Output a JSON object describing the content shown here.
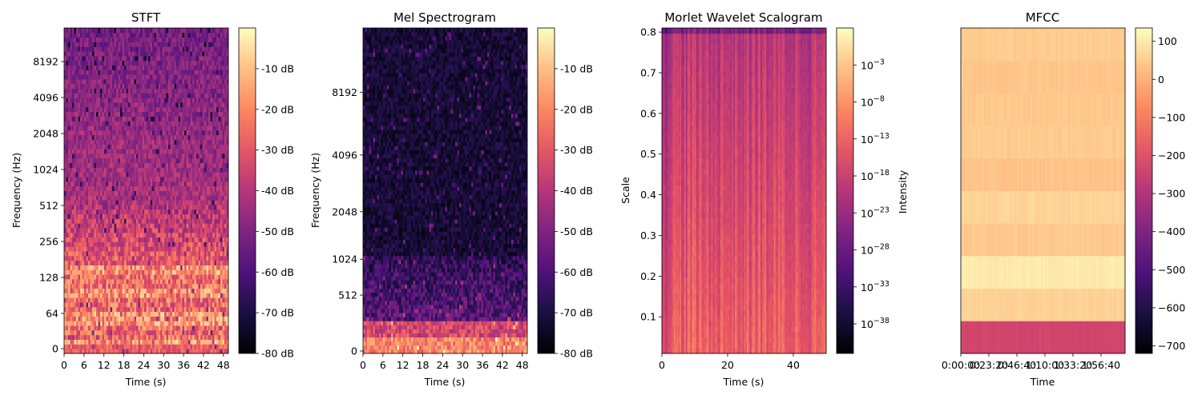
{
  "chart_data": [
    {
      "type": "heatmap",
      "title": "STFT",
      "xlabel": "Time (s)",
      "ylabel": "Frequency (Hz)",
      "x_ticks": [
        "0",
        "6",
        "12",
        "18",
        "24",
        "30",
        "36",
        "42",
        "48"
      ],
      "x_range": [
        0,
        49.5
      ],
      "y_ticks": [
        "0",
        "64",
        "128",
        "256",
        "512",
        "1024",
        "2048",
        "4096",
        "8192"
      ],
      "y_scale": "log-frequency",
      "colormap": "magma",
      "colorbar": {
        "ticks": [
          "-10 dB",
          "-20 dB",
          "-30 dB",
          "-40 dB",
          "-50 dB",
          "-60 dB",
          "-70 dB",
          "-80 dB"
        ],
        "range": [
          -80,
          0
        ],
        "label": ""
      },
      "energy_profile": "bright below ~200 Hz, fading to dark above 1 kHz"
    },
    {
      "type": "heatmap",
      "title": "Mel Spectrogram",
      "xlabel": "Time (s)",
      "ylabel": "Frequency (Hz)",
      "x_ticks": [
        "0",
        "6",
        "12",
        "18",
        "24",
        "30",
        "36",
        "42",
        "48"
      ],
      "x_range": [
        0,
        49.5
      ],
      "y_ticks": [
        "0",
        "512",
        "1024",
        "2048",
        "4096",
        "8192"
      ],
      "y_scale": "mel",
      "colormap": "magma",
      "colorbar": {
        "ticks": [
          "-10 dB",
          "-20 dB",
          "-30 dB",
          "-40 dB",
          "-50 dB",
          "-60 dB",
          "-70 dB",
          "-80 dB"
        ],
        "range": [
          -80,
          0
        ],
        "label": ""
      },
      "energy_profile": "bright only in lowest mel bands, mostly black above"
    },
    {
      "type": "heatmap",
      "title": "Morlet Wavelet Scalogram",
      "xlabel": "Time (s)",
      "ylabel": "Scale",
      "x_ticks": [
        "0",
        "20",
        "40"
      ],
      "x_range": [
        0,
        50
      ],
      "y_ticks": [
        "0.1",
        "0.2",
        "0.3",
        "0.4",
        "0.5",
        "0.6",
        "0.7",
        "0.8"
      ],
      "y_range": [
        0.01,
        0.81
      ],
      "colormap": "magma",
      "colorbar": {
        "label": "Intensity",
        "log_scale": true,
        "range_exponent": [
          -42,
          2
        ],
        "ticks": [
          {
            "base": "10",
            "exp": "−3"
          },
          {
            "base": "10",
            "exp": "−8"
          },
          {
            "base": "10",
            "exp": "−13"
          },
          {
            "base": "10",
            "exp": "−18"
          },
          {
            "base": "10",
            "exp": "−23"
          },
          {
            "base": "10",
            "exp": "−28"
          },
          {
            "base": "10",
            "exp": "−33"
          },
          {
            "base": "10",
            "exp": "−38"
          }
        ]
      },
      "energy_profile": "orange-red vertical streaks throughout, darker near top"
    },
    {
      "type": "heatmap",
      "title": "MFCC",
      "xlabel": "Time",
      "ylabel": "",
      "x_ticks": [
        "0:00:00",
        "0:23:20",
        "0:46:40",
        "1:10:00",
        "1:33:20",
        "1:56:40"
      ],
      "colormap": "magma",
      "colorbar": {
        "ticks": [
          "100",
          "0",
          "−100",
          "−200",
          "−300",
          "−400",
          "−500",
          "−600",
          "−700"
        ],
        "range": [
          -720,
          135
        ],
        "label": ""
      },
      "coefficient_levels": [
        -230,
        55,
        100,
        40,
        60,
        30,
        45,
        40,
        35,
        45
      ]
    }
  ]
}
